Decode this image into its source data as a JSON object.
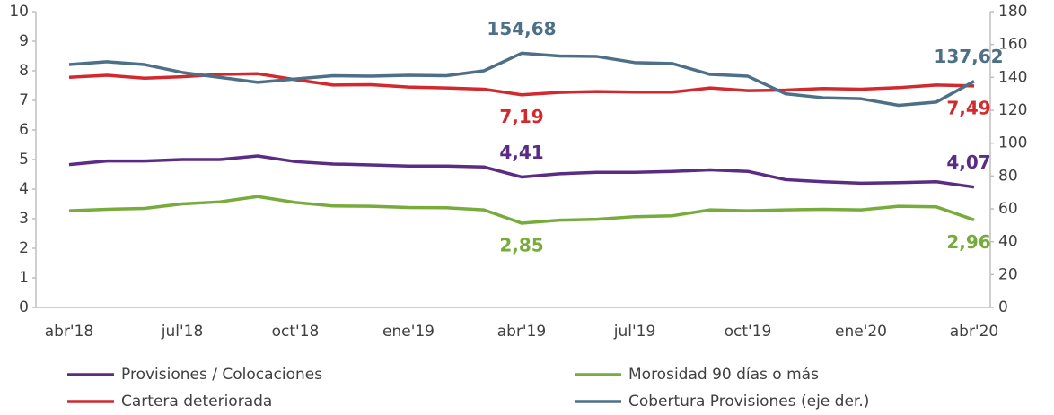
{
  "chart_data": {
    "type": "line",
    "categories": [
      "abr'18",
      null,
      null,
      "jul'18",
      null,
      null,
      "oct'18",
      null,
      null,
      "ene'19",
      null,
      null,
      "abr'19",
      null,
      null,
      "jul'19",
      null,
      null,
      "oct'19",
      null,
      null,
      "ene'20",
      null,
      null,
      "abr'20"
    ],
    "ylim": [
      0,
      10
    ],
    "yticks": [
      0,
      1,
      2,
      3,
      4,
      5,
      6,
      7,
      8,
      9,
      10
    ],
    "y2lim": [
      0,
      180
    ],
    "y2ticks": [
      0,
      20,
      40,
      60,
      80,
      100,
      120,
      140,
      160,
      180
    ],
    "series": [
      {
        "name": "Provisiones / Colocaciones",
        "color": "#5b2c83",
        "values": [
          4.83,
          4.95,
          4.95,
          5.0,
          5.0,
          5.12,
          4.93,
          4.85,
          4.82,
          4.78,
          4.78,
          4.75,
          4.41,
          4.52,
          4.57,
          4.57,
          4.6,
          4.65,
          4.6,
          4.32,
          4.25,
          4.2,
          4.22,
          4.25,
          4.07
        ],
        "value_labels": [
          null,
          null,
          null,
          null,
          null,
          null,
          null,
          null,
          null,
          null,
          null,
          null,
          "4,41",
          null,
          null,
          null,
          null,
          null,
          null,
          null,
          null,
          null,
          null,
          null,
          "4,07"
        ]
      },
      {
        "name": "Morosidad 90 días o más",
        "color": "#77ab3b",
        "values": [
          3.27,
          3.32,
          3.35,
          3.5,
          3.57,
          3.75,
          3.55,
          3.43,
          3.42,
          3.38,
          3.37,
          3.3,
          2.85,
          2.95,
          2.98,
          3.07,
          3.1,
          3.3,
          3.27,
          3.3,
          3.32,
          3.3,
          3.42,
          3.4,
          2.96
        ],
        "value_labels": [
          null,
          null,
          null,
          null,
          null,
          null,
          null,
          null,
          null,
          null,
          null,
          null,
          "2,85",
          null,
          null,
          null,
          null,
          null,
          null,
          null,
          null,
          null,
          null,
          null,
          "2,96"
        ]
      },
      {
        "name": "Cartera deteriorada",
        "color": "#d2292e",
        "values": [
          7.78,
          7.85,
          7.75,
          7.8,
          7.88,
          7.9,
          7.7,
          7.52,
          7.53,
          7.45,
          7.42,
          7.38,
          7.19,
          7.27,
          7.3,
          7.28,
          7.28,
          7.42,
          7.33,
          7.35,
          7.4,
          7.38,
          7.43,
          7.52,
          7.49
        ],
        "value_labels": [
          null,
          null,
          null,
          null,
          null,
          null,
          null,
          null,
          null,
          null,
          null,
          null,
          "7,19",
          null,
          null,
          null,
          null,
          null,
          null,
          null,
          null,
          null,
          null,
          null,
          "7,49"
        ]
      },
      {
        "name": "Cobertura Provisiones (eje der.)",
        "color": "#4d7088",
        "axis": "y2",
        "values": [
          147.8,
          149.5,
          147.8,
          143,
          140,
          137,
          139,
          141,
          140.7,
          141.3,
          141,
          144,
          154.68,
          153,
          152.7,
          149,
          148.4,
          141.8,
          140.7,
          130,
          127.6,
          127,
          123,
          125,
          137.62
        ],
        "value_labels": [
          null,
          null,
          null,
          null,
          null,
          null,
          null,
          null,
          null,
          null,
          null,
          null,
          "154,68",
          null,
          null,
          null,
          null,
          null,
          null,
          null,
          null,
          null,
          null,
          null,
          "137,62"
        ]
      }
    ]
  }
}
